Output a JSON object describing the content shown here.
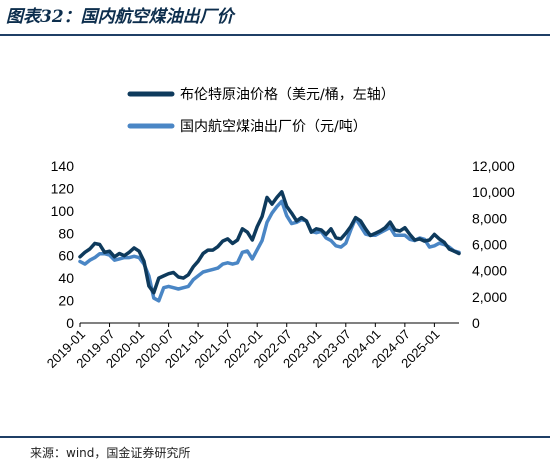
{
  "figure": {
    "title": "图表32：国内航空煤油出厂价",
    "source": "来源：wind，国金证券研究所"
  },
  "chart_data": {
    "type": "line",
    "legend_position": "top-center",
    "grid": false,
    "x_ticks": [
      "2019-01",
      "2019-07",
      "2020-01",
      "2020-07",
      "2021-01",
      "2021-07",
      "2022-01",
      "2022-07",
      "2023-01",
      "2023-07",
      "2024-01",
      "2024-07",
      "2025-01"
    ],
    "x_range": [
      "2019-01",
      "2025-06"
    ],
    "y_left": {
      "ticks": [
        "0",
        "20",
        "40",
        "60",
        "80",
        "100",
        "120",
        "140"
      ],
      "range": [
        0,
        140
      ]
    },
    "y_right": {
      "ticks": [
        "0",
        "2,000",
        "4,000",
        "6,000",
        "8,000",
        "10,000",
        "12,000"
      ],
      "range": [
        0,
        12000
      ]
    },
    "series": [
      {
        "name": "布伦特原油价格（美元/桶，左轴）",
        "axis": "left",
        "color": "#0e3a5c",
        "x": [
          "2019-01",
          "2019-02",
          "2019-03",
          "2019-04",
          "2019-05",
          "2019-06",
          "2019-07",
          "2019-08",
          "2019-09",
          "2019-10",
          "2019-11",
          "2019-12",
          "2020-01",
          "2020-02",
          "2020-03",
          "2020-04",
          "2020-05",
          "2020-06",
          "2020-07",
          "2020-08",
          "2020-09",
          "2020-10",
          "2020-11",
          "2020-12",
          "2021-01",
          "2021-02",
          "2021-03",
          "2021-04",
          "2021-05",
          "2021-06",
          "2021-07",
          "2021-08",
          "2021-09",
          "2021-10",
          "2021-11",
          "2021-12",
          "2022-01",
          "2022-02",
          "2022-03",
          "2022-04",
          "2022-05",
          "2022-06",
          "2022-07",
          "2022-08",
          "2022-09",
          "2022-10",
          "2022-11",
          "2022-12",
          "2023-01",
          "2023-02",
          "2023-03",
          "2023-04",
          "2023-05",
          "2023-06",
          "2023-07",
          "2023-08",
          "2023-09",
          "2023-10",
          "2023-11",
          "2023-12",
          "2024-01",
          "2024-02",
          "2024-03",
          "2024-04",
          "2024-05",
          "2024-06",
          "2024-07",
          "2024-08",
          "2024-09",
          "2024-10",
          "2024-11",
          "2024-12",
          "2025-01",
          "2025-02",
          "2025-03",
          "2025-04",
          "2025-05",
          "2025-06"
        ],
        "values": [
          59,
          63,
          66,
          71,
          70,
          63,
          64,
          59,
          62,
          60,
          63,
          67,
          64,
          55,
          33,
          27,
          40,
          42,
          44,
          45,
          41,
          40,
          43,
          50,
          55,
          62,
          65,
          65,
          68,
          73,
          75,
          71,
          74,
          84,
          81,
          74,
          86,
          95,
          112,
          106,
          112,
          117,
          104,
          98,
          91,
          94,
          91,
          81,
          84,
          83,
          79,
          84,
          76,
          75,
          80,
          86,
          94,
          91,
          84,
          78,
          80,
          82,
          85,
          90,
          83,
          82,
          85,
          79,
          74,
          75,
          73,
          74,
          79,
          75,
          72,
          66,
          64,
          62
        ]
      },
      {
        "name": "国内航空煤油出厂价（元/吨）",
        "axis": "right",
        "color": "#4a86c5",
        "x": [
          "2019-01",
          "2019-02",
          "2019-03",
          "2019-04",
          "2019-05",
          "2019-06",
          "2019-07",
          "2019-08",
          "2019-09",
          "2019-10",
          "2019-11",
          "2019-12",
          "2020-01",
          "2020-02",
          "2020-03",
          "2020-04",
          "2020-05",
          "2020-06",
          "2020-07",
          "2020-08",
          "2020-09",
          "2020-10",
          "2020-11",
          "2020-12",
          "2021-01",
          "2021-02",
          "2021-03",
          "2021-04",
          "2021-05",
          "2021-06",
          "2021-07",
          "2021-08",
          "2021-09",
          "2021-10",
          "2021-11",
          "2021-12",
          "2022-01",
          "2022-02",
          "2022-03",
          "2022-04",
          "2022-05",
          "2022-06",
          "2022-07",
          "2022-08",
          "2022-09",
          "2022-10",
          "2022-11",
          "2022-12",
          "2023-01",
          "2023-02",
          "2023-03",
          "2023-04",
          "2023-05",
          "2023-06",
          "2023-07",
          "2023-08",
          "2023-09",
          "2023-10",
          "2023-11",
          "2023-12",
          "2024-01",
          "2024-02",
          "2024-03",
          "2024-04",
          "2024-05",
          "2024-06",
          "2024-07",
          "2024-08",
          "2024-09",
          "2024-10",
          "2024-11",
          "2024-12",
          "2025-01",
          "2025-02",
          "2025-03",
          "2025-04",
          "2025-05",
          "2025-06"
        ],
        "values": [
          4700,
          4500,
          4800,
          5000,
          5300,
          5300,
          5200,
          4800,
          4900,
          5000,
          5000,
          5100,
          5000,
          4500,
          3600,
          1900,
          1700,
          2700,
          2800,
          2700,
          2600,
          2700,
          2800,
          3300,
          3600,
          3900,
          4000,
          4100,
          4200,
          4500,
          4600,
          4500,
          4600,
          5400,
          5500,
          4900,
          5600,
          6300,
          7700,
          8400,
          8900,
          9300,
          8200,
          7600,
          7700,
          7900,
          7800,
          7000,
          6900,
          7000,
          6500,
          6300,
          5900,
          5800,
          6100,
          7100,
          8000,
          7400,
          6800,
          6700,
          6700,
          6900,
          7100,
          7300,
          6700,
          6700,
          6700,
          6400,
          6300,
          6500,
          6400,
          5800,
          5900,
          6100,
          6000,
          5800,
          5500,
          5400
        ]
      }
    ]
  }
}
